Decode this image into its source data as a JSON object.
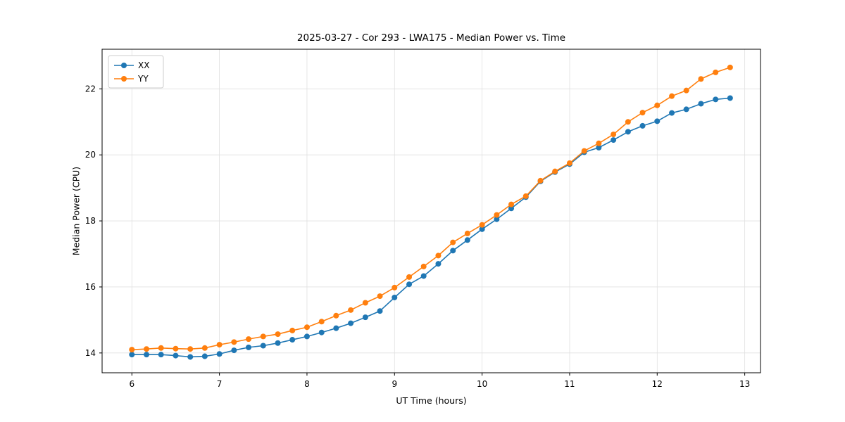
{
  "page": {
    "background": "#ffffff"
  },
  "chart_data": {
    "type": "line",
    "title": "2025-03-27 - Cor 293 - LWA175 - Median Power vs. Time",
    "xlabel": "UT Time (hours)",
    "ylabel": "Median Power (CPU)",
    "xlim": [
      5.66,
      13.18
    ],
    "ylim": [
      13.4,
      23.2
    ],
    "xticks": [
      6,
      7,
      8,
      9,
      10,
      11,
      12,
      13
    ],
    "yticks": [
      14,
      16,
      18,
      20,
      22
    ],
    "grid": true,
    "grid_color": "#e0e0e0",
    "axis_color": "#000000",
    "legend_position": "upper-left",
    "x": [
      6,
      6.167,
      6.333,
      6.5,
      6.667,
      6.833,
      7,
      7.167,
      7.333,
      7.5,
      7.667,
      7.833,
      8,
      8.167,
      8.333,
      8.5,
      8.667,
      8.833,
      9,
      9.167,
      9.333,
      9.5,
      9.667,
      9.833,
      10,
      10.167,
      10.333,
      10.5,
      10.667,
      10.833,
      11,
      11.167,
      11.333,
      11.5,
      11.667,
      11.833,
      12,
      12.167,
      12.333,
      12.5,
      12.667,
      12.833
    ],
    "series": [
      {
        "name": "XX",
        "color": "#1f77b4",
        "values": [
          13.95,
          13.95,
          13.95,
          13.92,
          13.88,
          13.9,
          13.97,
          14.08,
          14.17,
          14.22,
          14.3,
          14.4,
          14.5,
          14.62,
          14.75,
          14.9,
          15.08,
          15.27,
          15.68,
          16.08,
          16.33,
          16.7,
          17.1,
          17.42,
          17.75,
          18.05,
          18.38,
          18.72,
          19.2,
          19.48,
          19.72,
          20.08,
          20.22,
          20.45,
          20.7,
          20.88,
          21.02,
          21.27,
          21.38,
          21.55,
          21.68,
          21.72
        ]
      },
      {
        "name": "YY",
        "color": "#ff7f0e",
        "values": [
          14.1,
          14.12,
          14.15,
          14.13,
          14.12,
          14.15,
          14.25,
          14.33,
          14.42,
          14.5,
          14.57,
          14.68,
          14.78,
          14.95,
          15.13,
          15.3,
          15.52,
          15.72,
          15.98,
          16.3,
          16.62,
          16.95,
          17.35,
          17.62,
          17.88,
          18.18,
          18.5,
          18.75,
          19.22,
          19.5,
          19.75,
          20.12,
          20.35,
          20.62,
          21.0,
          21.28,
          21.5,
          21.78,
          21.95,
          22.3,
          22.5,
          22.65
        ]
      }
    ]
  }
}
